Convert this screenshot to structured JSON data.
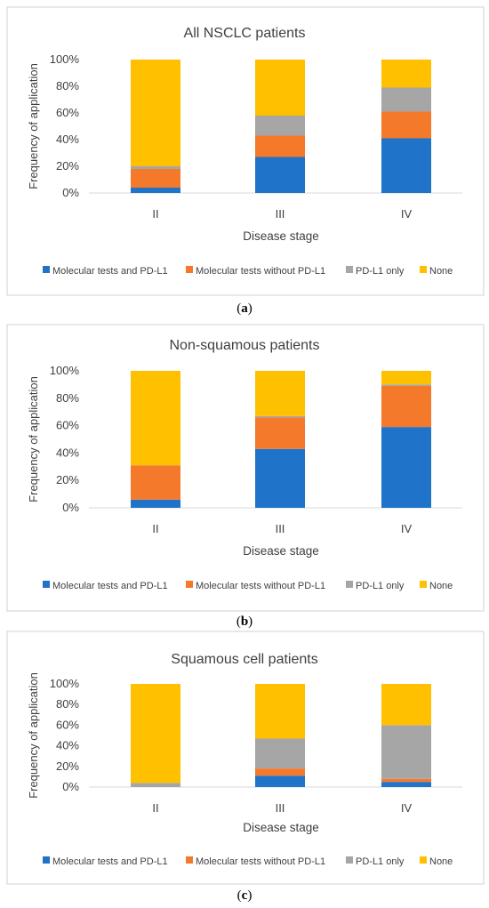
{
  "chart_data": [
    {
      "type": "bar",
      "stacked": true,
      "title": "All NSCLC patients",
      "xlabel": "Disease stage",
      "ylabel": "Frequency of application",
      "categories": [
        "II",
        "III",
        "IV"
      ],
      "yticks": [
        "0%",
        "20%",
        "40%",
        "60%",
        "80%",
        "100%"
      ],
      "ylim": [
        0,
        100
      ],
      "legend_position": "bottom",
      "series": [
        {
          "name": "Molecular tests and PD-L1",
          "color": "#1f73c8",
          "values": [
            4,
            27,
            41
          ]
        },
        {
          "name": "Molecular tests without PD-L1",
          "color": "#f5792a",
          "values": [
            14,
            16,
            20
          ]
        },
        {
          "name": "PD-L1 only",
          "color": "#a6a6a6",
          "values": [
            2,
            15,
            18
          ]
        },
        {
          "name": "None",
          "color": "#ffc000",
          "values": [
            80,
            42,
            21
          ]
        }
      ]
    },
    {
      "type": "bar",
      "stacked": true,
      "title": "Non-squamous patients",
      "xlabel": "Disease stage",
      "ylabel": "Frequency of application",
      "categories": [
        "II",
        "III",
        "IV"
      ],
      "yticks": [
        "0%",
        "20%",
        "40%",
        "60%",
        "80%",
        "100%"
      ],
      "ylim": [
        0,
        100
      ],
      "legend_position": "bottom",
      "series": [
        {
          "name": "Molecular tests and PD-L1",
          "color": "#1f73c8",
          "values": [
            6,
            43,
            59
          ]
        },
        {
          "name": "Molecular tests without PD-L1",
          "color": "#f5792a",
          "values": [
            25,
            23,
            30
          ]
        },
        {
          "name": "PD-L1 only",
          "color": "#a6a6a6",
          "values": [
            0,
            1,
            1
          ]
        },
        {
          "name": "None",
          "color": "#ffc000",
          "values": [
            69,
            33,
            10
          ]
        }
      ]
    },
    {
      "type": "bar",
      "stacked": true,
      "title": "Squamous cell patients",
      "xlabel": "Disease stage",
      "ylabel": "Frequency of application",
      "categories": [
        "II",
        "III",
        "IV"
      ],
      "yticks": [
        "0%",
        "20%",
        "40%",
        "60%",
        "80%",
        "100%"
      ],
      "ylim": [
        0,
        100
      ],
      "legend_position": "bottom",
      "series": [
        {
          "name": "Molecular tests and PD-L1",
          "color": "#1f73c8",
          "values": [
            0,
            11,
            5
          ]
        },
        {
          "name": "Molecular tests without PD-L1",
          "color": "#f5792a",
          "values": [
            0,
            7,
            3
          ]
        },
        {
          "name": "PD-L1 only",
          "color": "#a6a6a6",
          "values": [
            4,
            29,
            52
          ]
        },
        {
          "name": "None",
          "color": "#ffc000",
          "values": [
            96,
            53,
            40
          ]
        }
      ]
    }
  ],
  "captions": [
    "a",
    "b",
    "c"
  ]
}
